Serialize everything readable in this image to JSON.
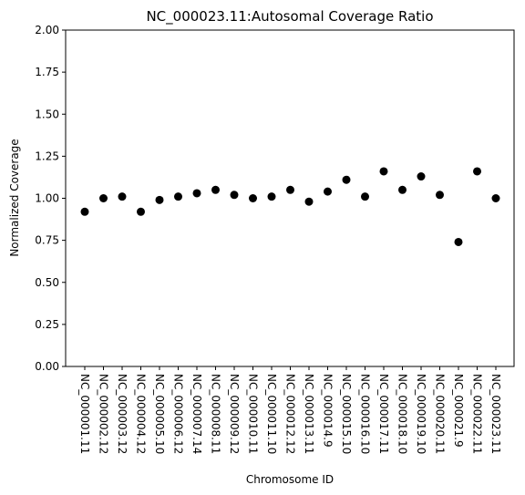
{
  "chart_data": {
    "type": "scatter",
    "title": "NC_000023.11:Autosomal Coverage Ratio",
    "xlabel": "Chromosome ID",
    "ylabel": "Normalized Coverage",
    "ylim": [
      0,
      2.0
    ],
    "yticks": [
      "0.00",
      "0.25",
      "0.50",
      "0.75",
      "1.00",
      "1.25",
      "1.50",
      "1.75",
      "2.00"
    ],
    "grid": false,
    "marker_color": "#000000",
    "categories": [
      "NC_000001.11",
      "NC_000002.12",
      "NC_000003.12",
      "NC_000004.12",
      "NC_000005.10",
      "NC_000006.12",
      "NC_000007.14",
      "NC_000008.11",
      "NC_000009.12",
      "NC_000010.11",
      "NC_000011.10",
      "NC_000012.12",
      "NC_000013.11",
      "NC_000014.9",
      "NC_000015.10",
      "NC_000016.10",
      "NC_000017.11",
      "NC_000018.10",
      "NC_000019.10",
      "NC_000020.11",
      "NC_000021.9",
      "NC_000022.11",
      "NC_000023.11"
    ],
    "values": [
      0.92,
      1.0,
      1.01,
      0.92,
      0.99,
      1.01,
      1.03,
      1.05,
      1.02,
      1.0,
      1.01,
      1.05,
      0.98,
      1.04,
      1.11,
      1.01,
      1.16,
      1.05,
      1.13,
      1.02,
      0.74,
      1.16,
      1.0
    ]
  }
}
